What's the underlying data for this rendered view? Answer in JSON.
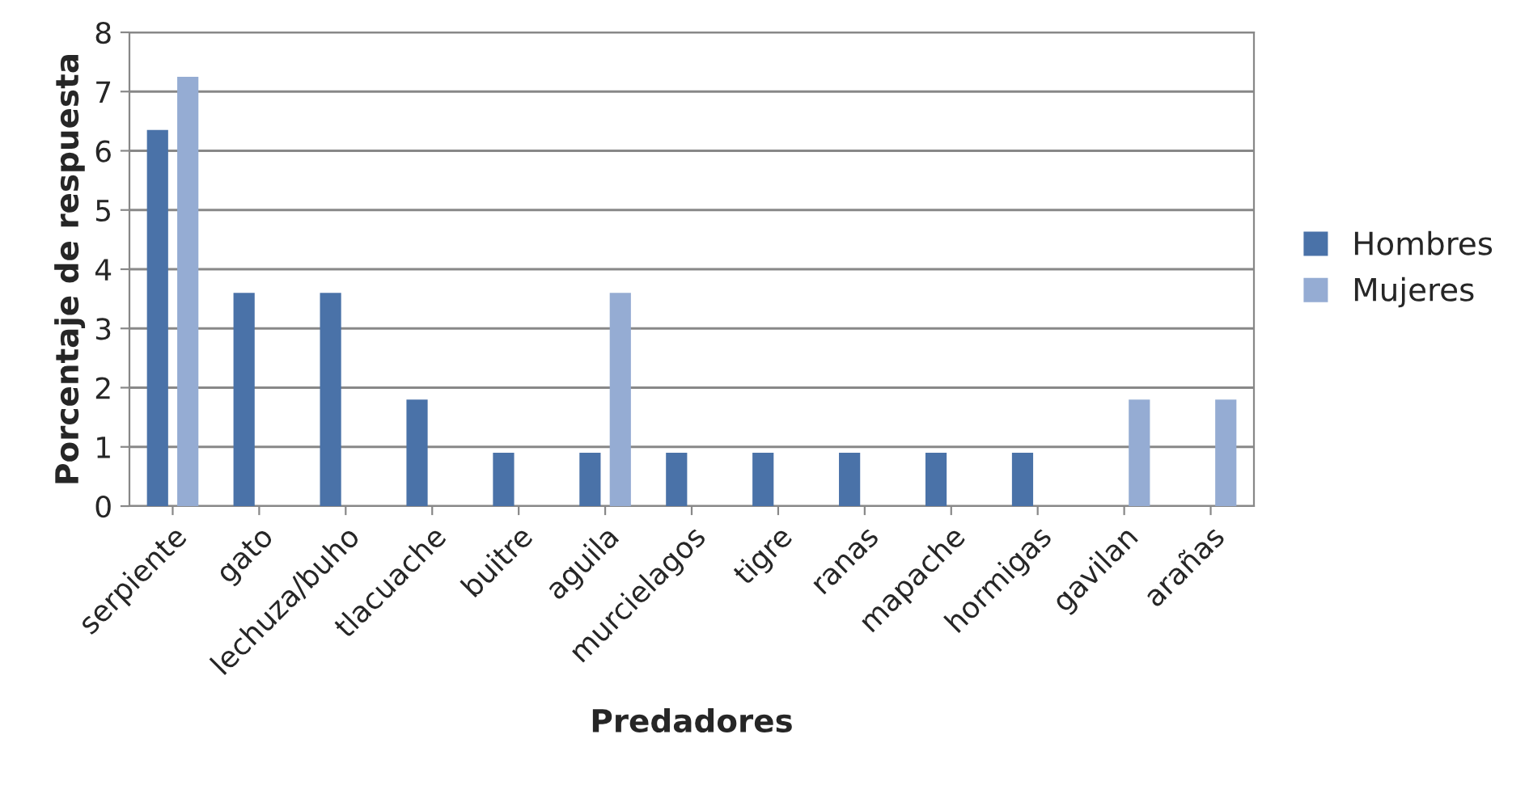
{
  "chart_data": {
    "type": "bar",
    "xlabel": "Predadores",
    "ylabel": "Porcentaje de respuesta",
    "categories": [
      "serpiente",
      "gato",
      "lechuza/buho",
      "tlacuache",
      "buitre",
      "aguila",
      "murcielagos",
      "tigre",
      "ranas",
      "mapache",
      "hormigas",
      "gavilan",
      "arañas"
    ],
    "series": [
      {
        "name": "Hombres",
        "color": "#4a72a8",
        "values": [
          6.35,
          3.6,
          3.6,
          1.8,
          0.9,
          0.9,
          0.9,
          0.9,
          0.9,
          0.9,
          0.9,
          null,
          null
        ]
      },
      {
        "name": "Mujeres",
        "color": "#95acd3",
        "values": [
          7.25,
          null,
          null,
          null,
          null,
          3.6,
          null,
          null,
          null,
          null,
          null,
          1.8,
          1.8
        ]
      }
    ],
    "ylim": [
      0,
      8
    ],
    "yticks": [
      0,
      1,
      2,
      3,
      4,
      5,
      6,
      7,
      8
    ],
    "grid": "y",
    "legend": "right"
  }
}
